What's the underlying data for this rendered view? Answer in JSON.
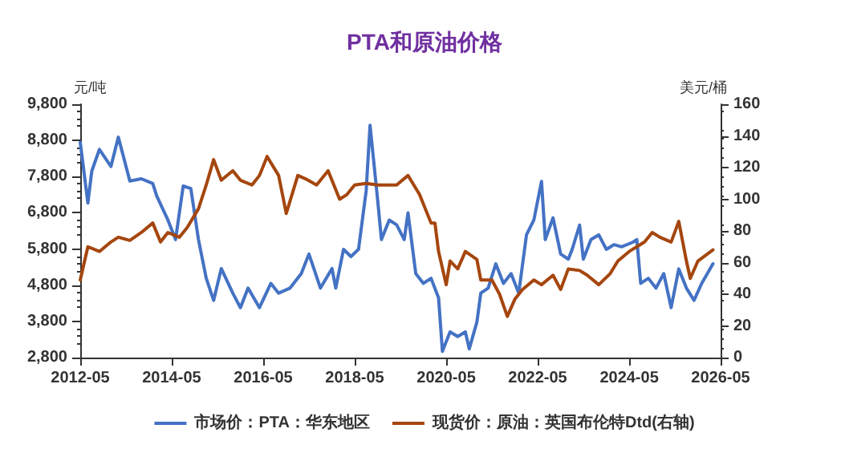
{
  "chart_data": {
    "type": "line",
    "title": "PTA和原油价格",
    "ylabel": "元/吨",
    "y2label": "美元/桶",
    "xlim": [
      "2012-05",
      "2026-05"
    ],
    "xticks": [
      "2012-05",
      "2014-05",
      "2016-05",
      "2018-05",
      "2020-05",
      "2022-05",
      "2024-05",
      "2026-05"
    ],
    "ylim": [
      2800,
      9800
    ],
    "yticks": [
      {
        "value": 2800,
        "label": "2,800"
      },
      {
        "value": 3800,
        "label": "3,800"
      },
      {
        "value": 4800,
        "label": "4,800"
      },
      {
        "value": 5800,
        "label": "5,800"
      },
      {
        "value": 6800,
        "label": "6,800"
      },
      {
        "value": 7800,
        "label": "7,800"
      },
      {
        "value": 8800,
        "label": "8,800"
      },
      {
        "value": 9800,
        "label": "9,800"
      }
    ],
    "y2lim": [
      0,
      160
    ],
    "y2ticks": [
      0,
      20,
      40,
      60,
      80,
      100,
      120,
      140,
      160
    ],
    "grid": false,
    "legend": "bottom",
    "marker": "none",
    "line_style": "solid",
    "series": [
      {
        "name": "市场价：PTA：华东地区",
        "color": "#4472c4",
        "x": [
          "2012-05",
          "2012-07",
          "2012-08",
          "2012-10",
          "2013-01",
          "2013-03",
          "2013-06",
          "2013-09",
          "2013-12",
          "2014-01",
          "2014-04",
          "2014-06",
          "2014-08",
          "2014-10",
          "2014-12",
          "2015-02",
          "2015-04",
          "2015-06",
          "2015-09",
          "2015-11",
          "2016-01",
          "2016-04",
          "2016-07",
          "2016-09",
          "2016-12",
          "2017-03",
          "2017-05",
          "2017-08",
          "2017-11",
          "2017-12",
          "2018-02",
          "2018-04",
          "2018-06",
          "2018-08",
          "2018-09",
          "2018-11",
          "2018-12",
          "2019-02",
          "2019-04",
          "2019-06",
          "2019-07",
          "2019-09",
          "2019-11",
          "2020-01",
          "2020-03",
          "2020-04",
          "2020-05",
          "2020-06",
          "2020-08",
          "2020-10",
          "2020-11",
          "2021-01",
          "2021-02",
          "2021-04",
          "2021-06",
          "2021-08",
          "2021-10",
          "2021-12",
          "2022-02",
          "2022-04",
          "2022-06",
          "2022-07",
          "2022-09",
          "2022-11",
          "2023-01",
          "2023-02",
          "2023-04",
          "2023-05",
          "2023-07",
          "2023-09",
          "2023-11",
          "2024-01",
          "2024-03",
          "2024-06",
          "2024-07",
          "2024-08",
          "2024-10",
          "2024-12",
          "2025-02",
          "2025-04",
          "2025-06",
          "2025-08",
          "2025-10",
          "2025-12",
          "2026-03"
        ],
        "values": [
          8750,
          7070,
          7950,
          8550,
          8080,
          8890,
          7680,
          7740,
          7610,
          7270,
          6600,
          6060,
          7540,
          7470,
          6060,
          4990,
          4380,
          5260,
          4580,
          4180,
          4720,
          4180,
          4850,
          4580,
          4720,
          5120,
          5660,
          4720,
          5260,
          4720,
          5790,
          5590,
          5790,
          7410,
          9220,
          7140,
          6060,
          6600,
          6470,
          6060,
          6800,
          5120,
          4850,
          4990,
          4450,
          2970,
          3240,
          3510,
          3380,
          3510,
          3040,
          3780,
          4580,
          4720,
          5390,
          4850,
          5120,
          4580,
          6190,
          6600,
          7670,
          6060,
          6660,
          5660,
          5520,
          5790,
          6460,
          5520,
          6060,
          6190,
          5790,
          5920,
          5860,
          5990,
          6060,
          4850,
          4990,
          4720,
          5120,
          4180,
          5250,
          4720,
          4380,
          4850,
          5390
        ]
      },
      {
        "name": "现货价：原油：英国布伦特Dtd(右轴)",
        "color": "#a5460e",
        "axis": "y2",
        "x": [
          "2012-05",
          "2012-07",
          "2012-10",
          "2013-01",
          "2013-03",
          "2013-06",
          "2013-09",
          "2013-12",
          "2014-02",
          "2014-04",
          "2014-07",
          "2014-09",
          "2014-12",
          "2015-02",
          "2015-04",
          "2015-06",
          "2015-09",
          "2015-11",
          "2016-02",
          "2016-04",
          "2016-06",
          "2016-09",
          "2016-11",
          "2017-02",
          "2017-04",
          "2017-07",
          "2017-10",
          "2018-01",
          "2018-03",
          "2018-05",
          "2018-08",
          "2018-11",
          "2019-01",
          "2019-04",
          "2019-07",
          "2019-10",
          "2020-01",
          "2020-02",
          "2020-03",
          "2020-05",
          "2020-06",
          "2020-08",
          "2020-10",
          "2021-01",
          "2021-02",
          "2021-05",
          "2021-07",
          "2021-09",
          "2021-11",
          "2022-01",
          "2022-04",
          "2022-06",
          "2022-09",
          "2022-11",
          "2023-01",
          "2023-04",
          "2023-06",
          "2023-09",
          "2023-12",
          "2024-02",
          "2024-05",
          "2024-07",
          "2024-09",
          "2024-11",
          "2025-01",
          "2025-04",
          "2025-06",
          "2025-08",
          "2025-09",
          "2025-11",
          "2026-03"
        ],
        "values": [
          49,
          70,
          67,
          73,
          76,
          74,
          79,
          85,
          73,
          79,
          76,
          82,
          94,
          109,
          125,
          112,
          118,
          112,
          109,
          115,
          127,
          115,
          91,
          115,
          113,
          109,
          118,
          100,
          103,
          109,
          110,
          109,
          109,
          109,
          115,
          103,
          85,
          85,
          67,
          46,
          61,
          56,
          67,
          62,
          49,
          49,
          40,
          26,
          37,
          43,
          49,
          46,
          52,
          43,
          56,
          55,
          52,
          46,
          53,
          61,
          67,
          70,
          73,
          79,
          76,
          73,
          86,
          61,
          50,
          61,
          68
        ]
      }
    ]
  }
}
